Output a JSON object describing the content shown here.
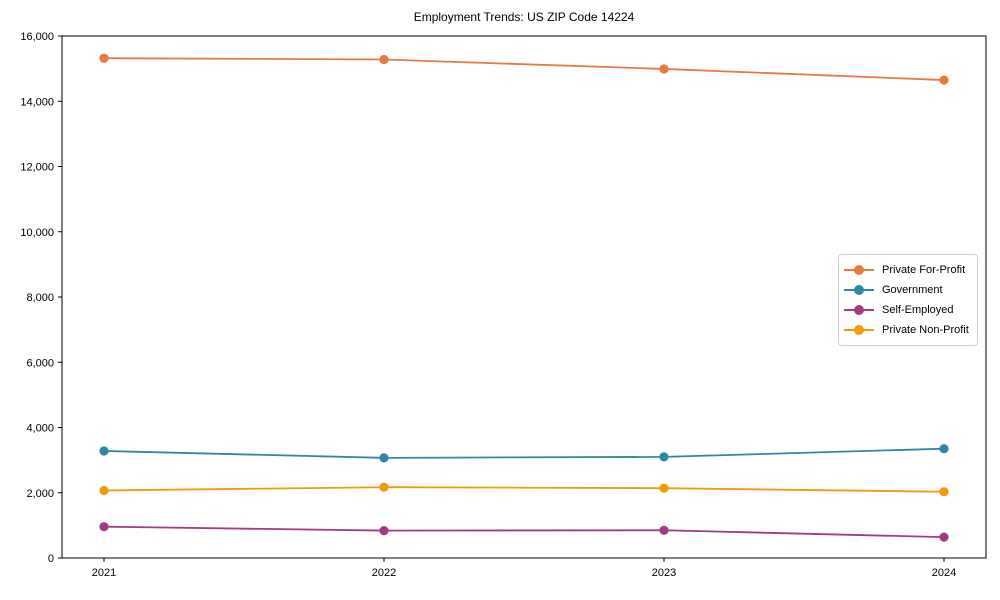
{
  "chart_data": {
    "type": "line",
    "title": "Employment Trends: US ZIP Code 14224",
    "xlabel": "",
    "ylabel": "",
    "x": [
      "2021",
      "2022",
      "2023",
      "2024"
    ],
    "ylim": [
      0,
      16000
    ],
    "y_tick_step": 2000,
    "y_tick_labels": [
      "0",
      "2,000",
      "4,000",
      "6,000",
      "8,000",
      "10,000",
      "12,000",
      "14,000",
      "16,000"
    ],
    "grid": false,
    "legend_position": "center-right",
    "series": [
      {
        "name": "Private For-Profit",
        "color": "#e8793e",
        "values": [
          15320,
          15280,
          14990,
          14650
        ]
      },
      {
        "name": "Government",
        "color": "#2f86a5",
        "values": [
          3280,
          3070,
          3100,
          3350
        ]
      },
      {
        "name": "Self-Employed",
        "color": "#a33b83",
        "values": [
          960,
          840,
          850,
          640
        ]
      },
      {
        "name": "Private Non-Profit",
        "color": "#f09a0c",
        "values": [
          2070,
          2170,
          2140,
          2030
        ]
      }
    ]
  }
}
